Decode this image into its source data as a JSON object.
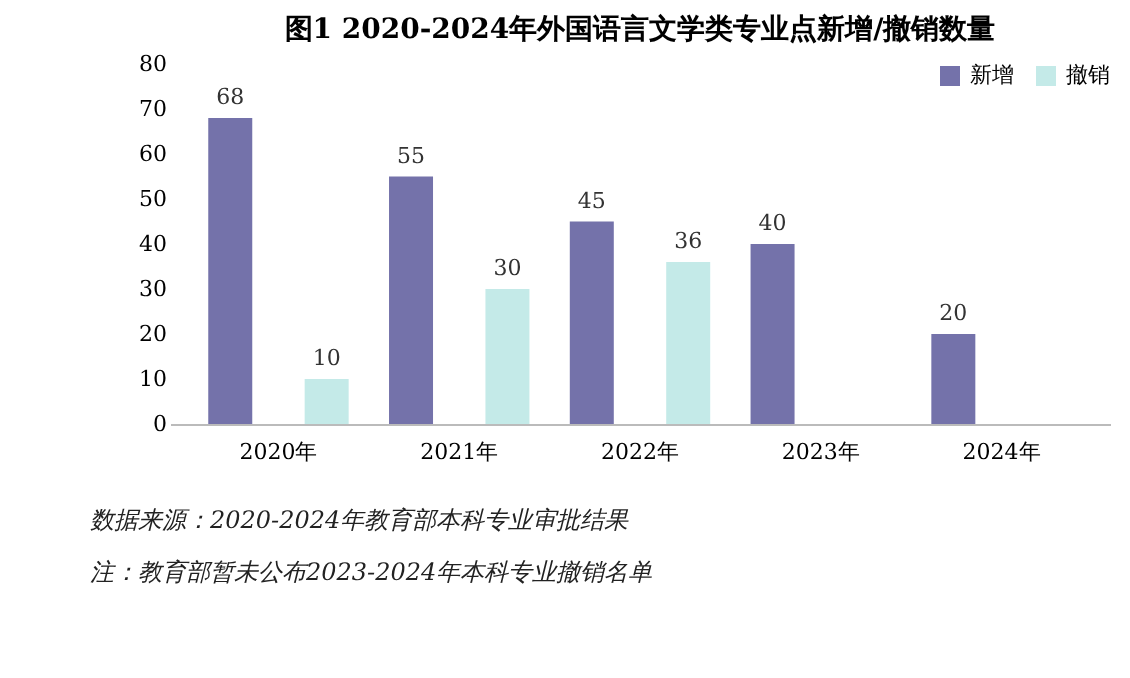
{
  "chart_data": {
    "type": "bar",
    "title": "图1  2020-2024年外国语言文学类专业点新增/撤销数量",
    "categories": [
      "2020年",
      "2021年",
      "2022年",
      "2023年",
      "2024年"
    ],
    "series": [
      {
        "name": "新增",
        "color": "#7472aa",
        "values": [
          68,
          55,
          45,
          40,
          20
        ]
      },
      {
        "name": "撤销",
        "color": "#c4eae8",
        "values": [
          10,
          30,
          36,
          null,
          null
        ]
      }
    ],
    "ylim": [
      0,
      80
    ],
    "yticks": [
      0,
      10,
      20,
      30,
      40,
      50,
      60,
      70,
      80
    ],
    "grid": false,
    "legend": "top right",
    "data_labels": true,
    "annotations": [
      "数据来源：2020-2024年教育部本科专业审批结果",
      "注：教育部暂未公布2023-2024年本科专业撤销名单"
    ]
  }
}
